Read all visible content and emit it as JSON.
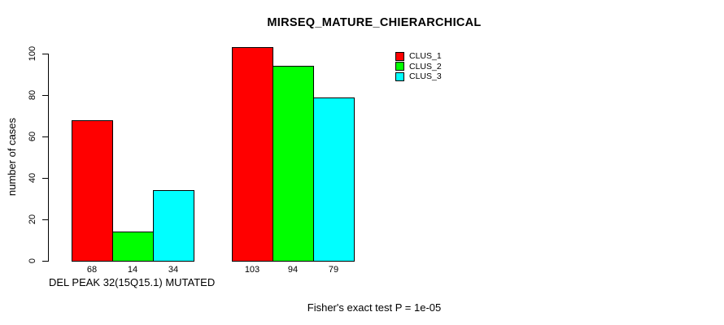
{
  "page": {
    "background_color": "#ffffff",
    "text_color": "#000000",
    "axis_color": "#000000"
  },
  "chart_data": {
    "type": "bar",
    "title": "MIRSEQ_MATURE_CHIERARCHICAL",
    "ylabel": "number of cases",
    "xlabel": "DEL PEAK 32(15Q15.1) MUTATED",
    "footnote": "Fisher's exact test P = 1e-05",
    "ylim": [
      0,
      100
    ],
    "yticks": [
      0,
      20,
      40,
      60,
      80,
      100
    ],
    "grid": false,
    "legend_position": "top-right-inside",
    "categories": [
      "DEL PEAK 32(15Q15.1) MUTATED",
      ""
    ],
    "series": [
      {
        "name": "CLUS_1",
        "color": "#ff0000",
        "values": [
          68,
          103
        ]
      },
      {
        "name": "CLUS_2",
        "color": "#00ff00",
        "values": [
          14,
          94
        ]
      },
      {
        "name": "CLUS_3",
        "color": "#00ffff",
        "values": [
          34,
          79
        ]
      }
    ],
    "bar_value_labels": [
      [
        68,
        14,
        34
      ],
      [
        103,
        94,
        79
      ]
    ]
  }
}
